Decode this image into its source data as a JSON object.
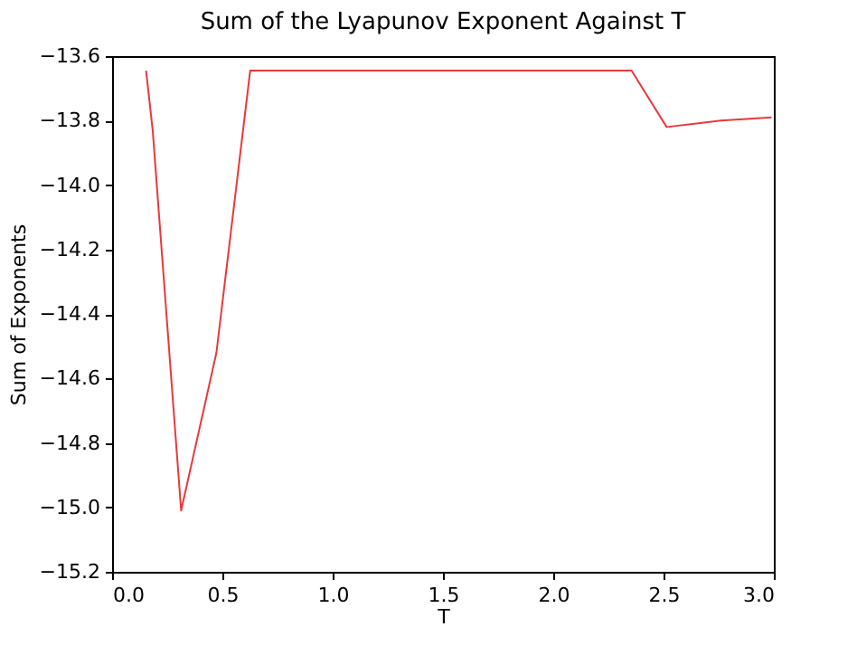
{
  "chart_data": {
    "type": "line",
    "title": "Sum of the Lyapunov Exponent Against T",
    "xlabel": "T",
    "ylabel": "Sum of Exponents",
    "series": [
      {
        "color": "#e8393c",
        "x": [
          0.154,
          0.184,
          0.313,
          0.473,
          0.626,
          2.355,
          2.514,
          2.76,
          2.99
        ],
        "values": [
          -13.645,
          -13.83,
          -15.01,
          -14.52,
          -13.645,
          -13.645,
          -13.82,
          -13.8,
          -13.79
        ]
      }
    ],
    "xlim": [
      0,
      3
    ],
    "xticks": [
      {
        "value": 0,
        "label": "0.0"
      },
      0.5,
      {
        "value": 1,
        "label": "1.0"
      },
      1.5,
      {
        "value": 2,
        "label": "2.0"
      },
      2.5,
      {
        "value": 3,
        "label": "3.0"
      }
    ],
    "ylim": [
      -15.2,
      -13.6
    ],
    "yticks": [
      -15.2,
      {
        "value": -15,
        "label": "−15.0"
      },
      -14.8,
      -14.6,
      -14.4,
      -14.2,
      {
        "value": -14,
        "label": "−14.0"
      },
      -13.8,
      -13.6
    ],
    "grid": false
  }
}
